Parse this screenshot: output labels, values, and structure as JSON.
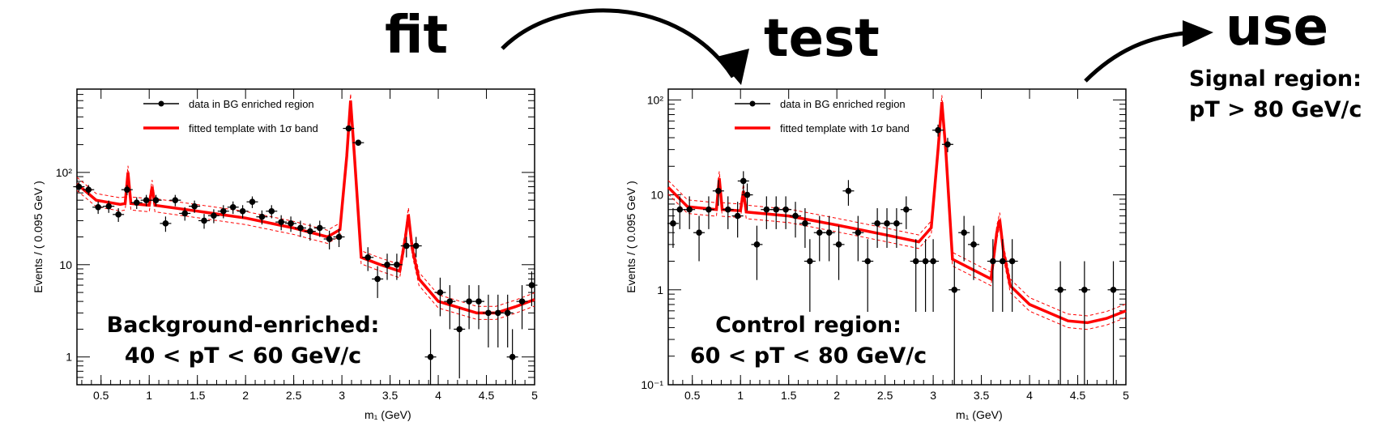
{
  "flow": {
    "fit": "fit",
    "test": "test",
    "use": "use",
    "signal_line1": "Signal region:",
    "signal_line2": "pT > 80 GeV/c"
  },
  "colors": {
    "fit_line": "#ff0000",
    "data": "#000000",
    "band": "#ff0000"
  },
  "chart_data": [
    {
      "type": "scatter",
      "xlabel": "m₁ (GeV)",
      "ylabel": "Events / ( 0.095 GeV )",
      "xlim": [
        0.25,
        5.0
      ],
      "ylim": [
        0.5,
        800
      ],
      "log_y": true,
      "x_ticks": [
        {
          "v": 0.5,
          "label": "0.5"
        },
        {
          "v": 1,
          "label": "1"
        },
        {
          "v": 1.5,
          "label": "1.5"
        },
        {
          "v": 2,
          "label": "2"
        },
        {
          "v": 2.5,
          "label": "2.5"
        },
        {
          "v": 3,
          "label": "3"
        },
        {
          "v": 3.5,
          "label": "3.5"
        },
        {
          "v": 4,
          "label": "4"
        },
        {
          "v": 4.5,
          "label": "4.5"
        },
        {
          "v": 5,
          "label": "5"
        }
      ],
      "y_ticks": [
        {
          "v": 1,
          "label": "1"
        },
        {
          "v": 10,
          "label": "10"
        },
        {
          "v": 100,
          "label": "10²"
        }
      ],
      "legend": [
        "data in BG enriched region",
        "fitted template with 1σ band"
      ],
      "legend_position": "top-left",
      "region_label": [
        "Background-enriched:",
        "40 < pT < 60 GeV/c"
      ],
      "series": [
        {
          "name": "data in BG enriched region",
          "points": [
            {
              "x": 0.27,
              "y": 70
            },
            {
              "x": 0.37,
              "y": 65
            },
            {
              "x": 0.47,
              "y": 42
            },
            {
              "x": 0.58,
              "y": 43
            },
            {
              "x": 0.68,
              "y": 35
            },
            {
              "x": 0.77,
              "y": 65
            },
            {
              "x": 0.87,
              "y": 47
            },
            {
              "x": 0.97,
              "y": 50
            },
            {
              "x": 1.07,
              "y": 50
            },
            {
              "x": 1.17,
              "y": 28
            },
            {
              "x": 1.27,
              "y": 50
            },
            {
              "x": 1.37,
              "y": 36
            },
            {
              "x": 1.47,
              "y": 43
            },
            {
              "x": 1.57,
              "y": 30
            },
            {
              "x": 1.67,
              "y": 34
            },
            {
              "x": 1.77,
              "y": 38
            },
            {
              "x": 1.87,
              "y": 42
            },
            {
              "x": 1.97,
              "y": 38
            },
            {
              "x": 2.07,
              "y": 48
            },
            {
              "x": 2.17,
              "y": 33
            },
            {
              "x": 2.27,
              "y": 38
            },
            {
              "x": 2.37,
              "y": 29
            },
            {
              "x": 2.47,
              "y": 28
            },
            {
              "x": 2.57,
              "y": 25
            },
            {
              "x": 2.67,
              "y": 23
            },
            {
              "x": 2.77,
              "y": 25
            },
            {
              "x": 2.87,
              "y": 19
            },
            {
              "x": 2.97,
              "y": 20
            },
            {
              "x": 3.07,
              "y": 300
            },
            {
              "x": 3.17,
              "y": 210
            },
            {
              "x": 3.27,
              "y": 12
            },
            {
              "x": 3.37,
              "y": 7
            },
            {
              "x": 3.47,
              "y": 10
            },
            {
              "x": 3.57,
              "y": 10
            },
            {
              "x": 3.67,
              "y": 16
            },
            {
              "x": 3.77,
              "y": 16
            },
            {
              "x": 3.92,
              "y": 1
            },
            {
              "x": 4.02,
              "y": 5
            },
            {
              "x": 4.12,
              "y": 4
            },
            {
              "x": 4.22,
              "y": 2
            },
            {
              "x": 4.32,
              "y": 4
            },
            {
              "x": 4.42,
              "y": 4
            },
            {
              "x": 4.52,
              "y": 3
            },
            {
              "x": 4.62,
              "y": 3
            },
            {
              "x": 4.72,
              "y": 3
            },
            {
              "x": 4.77,
              "y": 1
            },
            {
              "x": 4.87,
              "y": 4
            },
            {
              "x": 4.97,
              "y": 6
            }
          ]
        },
        {
          "name": "fitted template with 1σ band",
          "points": [
            {
              "x": 0.25,
              "y": 75
            },
            {
              "x": 0.45,
              "y": 50
            },
            {
              "x": 0.7,
              "y": 45
            },
            {
              "x": 0.75,
              "y": 46
            },
            {
              "x": 0.78,
              "y": 100
            },
            {
              "x": 0.81,
              "y": 46
            },
            {
              "x": 1.0,
              "y": 44
            },
            {
              "x": 1.03,
              "y": 70
            },
            {
              "x": 1.06,
              "y": 44
            },
            {
              "x": 1.5,
              "y": 38
            },
            {
              "x": 2.0,
              "y": 32
            },
            {
              "x": 2.5,
              "y": 25
            },
            {
              "x": 2.85,
              "y": 20
            },
            {
              "x": 2.98,
              "y": 24
            },
            {
              "x": 3.05,
              "y": 150
            },
            {
              "x": 3.09,
              "y": 600
            },
            {
              "x": 3.13,
              "y": 150
            },
            {
              "x": 3.2,
              "y": 12
            },
            {
              "x": 3.4,
              "y": 10
            },
            {
              "x": 3.6,
              "y": 8.5
            },
            {
              "x": 3.66,
              "y": 20
            },
            {
              "x": 3.69,
              "y": 35
            },
            {
              "x": 3.73,
              "y": 15
            },
            {
              "x": 3.8,
              "y": 7
            },
            {
              "x": 4.0,
              "y": 4
            },
            {
              "x": 4.4,
              "y": 3
            },
            {
              "x": 4.6,
              "y": 3
            },
            {
              "x": 4.8,
              "y": 3.5
            },
            {
              "x": 5.0,
              "y": 4.2
            }
          ]
        }
      ]
    },
    {
      "type": "scatter",
      "xlabel": "m₁ (GeV)",
      "ylabel": "Events / ( 0.095 GeV )",
      "xlim": [
        0.25,
        5.0
      ],
      "ylim": [
        0.1,
        130
      ],
      "log_y": true,
      "x_ticks": [
        {
          "v": 0.5,
          "label": "0.5"
        },
        {
          "v": 1,
          "label": "1"
        },
        {
          "v": 1.5,
          "label": "1.5"
        },
        {
          "v": 2,
          "label": "2"
        },
        {
          "v": 2.5,
          "label": "2.5"
        },
        {
          "v": 3,
          "label": "3"
        },
        {
          "v": 3.5,
          "label": "3.5"
        },
        {
          "v": 4,
          "label": "4"
        },
        {
          "v": 4.5,
          "label": "4.5"
        },
        {
          "v": 5,
          "label": "5"
        }
      ],
      "y_ticks": [
        {
          "v": 0.1,
          "label": "10⁻¹"
        },
        {
          "v": 1,
          "label": "1"
        },
        {
          "v": 10,
          "label": "10"
        },
        {
          "v": 100,
          "label": "10²"
        }
      ],
      "legend": [
        "data in BG enriched region",
        "fitted template with 1σ band"
      ],
      "legend_position": "top-left",
      "region_label": [
        "Control region:",
        "60 < pT < 80 GeV/c"
      ],
      "series": [
        {
          "name": "data in BG enriched region",
          "points": [
            {
              "x": 0.3,
              "y": 5
            },
            {
              "x": 0.37,
              "y": 7
            },
            {
              "x": 0.47,
              "y": 7
            },
            {
              "x": 0.57,
              "y": 4
            },
            {
              "x": 0.67,
              "y": 7
            },
            {
              "x": 0.77,
              "y": 11
            },
            {
              "x": 0.87,
              "y": 7
            },
            {
              "x": 0.97,
              "y": 6
            },
            {
              "x": 1.03,
              "y": 14
            },
            {
              "x": 1.07,
              "y": 10
            },
            {
              "x": 1.17,
              "y": 3
            },
            {
              "x": 1.27,
              "y": 7
            },
            {
              "x": 1.37,
              "y": 7
            },
            {
              "x": 1.47,
              "y": 7
            },
            {
              "x": 1.57,
              "y": 6
            },
            {
              "x": 1.67,
              "y": 5
            },
            {
              "x": 1.72,
              "y": 2
            },
            {
              "x": 1.82,
              "y": 4
            },
            {
              "x": 1.92,
              "y": 4
            },
            {
              "x": 2.02,
              "y": 3
            },
            {
              "x": 2.12,
              "y": 11
            },
            {
              "x": 2.22,
              "y": 4
            },
            {
              "x": 2.32,
              "y": 2
            },
            {
              "x": 2.42,
              "y": 5
            },
            {
              "x": 2.52,
              "y": 5
            },
            {
              "x": 2.62,
              "y": 5
            },
            {
              "x": 2.72,
              "y": 7
            },
            {
              "x": 2.82,
              "y": 2
            },
            {
              "x": 2.92,
              "y": 2
            },
            {
              "x": 3.0,
              "y": 2
            },
            {
              "x": 3.05,
              "y": 48
            },
            {
              "x": 3.15,
              "y": 34
            },
            {
              "x": 3.22,
              "y": 1
            },
            {
              "x": 3.32,
              "y": 4
            },
            {
              "x": 3.42,
              "y": 3
            },
            {
              "x": 3.62,
              "y": 2
            },
            {
              "x": 3.72,
              "y": 2
            },
            {
              "x": 3.82,
              "y": 2
            },
            {
              "x": 4.32,
              "y": 1
            },
            {
              "x": 4.57,
              "y": 1
            },
            {
              "x": 4.87,
              "y": 1
            }
          ]
        },
        {
          "name": "fitted template with 1σ band",
          "points": [
            {
              "x": 0.25,
              "y": 12
            },
            {
              "x": 0.45,
              "y": 7.5
            },
            {
              "x": 0.75,
              "y": 7
            },
            {
              "x": 0.78,
              "y": 15
            },
            {
              "x": 0.81,
              "y": 7
            },
            {
              "x": 1.0,
              "y": 6.8
            },
            {
              "x": 1.03,
              "y": 11
            },
            {
              "x": 1.06,
              "y": 6.6
            },
            {
              "x": 1.5,
              "y": 6
            },
            {
              "x": 2.0,
              "y": 4.8
            },
            {
              "x": 2.5,
              "y": 3.8
            },
            {
              "x": 2.85,
              "y": 3.2
            },
            {
              "x": 2.98,
              "y": 4.5
            },
            {
              "x": 3.05,
              "y": 30
            },
            {
              "x": 3.09,
              "y": 95
            },
            {
              "x": 3.13,
              "y": 30
            },
            {
              "x": 3.2,
              "y": 2.1
            },
            {
              "x": 3.6,
              "y": 1.3
            },
            {
              "x": 3.66,
              "y": 4
            },
            {
              "x": 3.69,
              "y": 5.5
            },
            {
              "x": 3.73,
              "y": 2.5
            },
            {
              "x": 3.8,
              "y": 1.1
            },
            {
              "x": 4.0,
              "y": 0.7
            },
            {
              "x": 4.4,
              "y": 0.47
            },
            {
              "x": 4.6,
              "y": 0.45
            },
            {
              "x": 4.8,
              "y": 0.5
            },
            {
              "x": 5.0,
              "y": 0.6
            }
          ]
        }
      ]
    }
  ]
}
